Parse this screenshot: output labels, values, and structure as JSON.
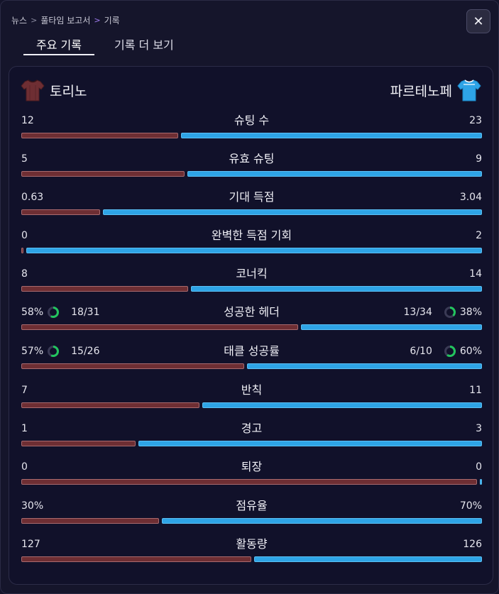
{
  "breadcrumb": {
    "items": [
      "뉴스",
      "풀타임 보고서",
      "기록"
    ]
  },
  "close_icon": "✕",
  "tabs": [
    {
      "label": "주요 기록"
    },
    {
      "label": "기록 더 보기"
    }
  ],
  "teams": {
    "home": {
      "name": "토리노",
      "color": "#6e2e33"
    },
    "away": {
      "name": "파르테노페",
      "color": "#2ea4e6"
    }
  },
  "stats": [
    {
      "label": "슈팅 수",
      "home": "12",
      "away": "23",
      "hv": 12,
      "av": 23
    },
    {
      "label": "유효 슈팅",
      "home": "5",
      "away": "9",
      "hv": 5,
      "av": 9
    },
    {
      "label": "기대 득점",
      "home": "0.63",
      "away": "3.04",
      "hv": 0.63,
      "av": 3.04
    },
    {
      "label": "완벽한 득점 기회",
      "home": "0",
      "away": "2",
      "hv": 0,
      "av": 2
    },
    {
      "label": "코너킥",
      "home": "8",
      "away": "14",
      "hv": 8,
      "av": 14
    },
    {
      "label": "성공한 헤더",
      "home": "18/31",
      "away": "13/34",
      "home_pct": "58%",
      "away_pct": "38%",
      "hv": 58,
      "av": 38
    },
    {
      "label": "태클 성공률",
      "home": "15/26",
      "away": "6/10",
      "home_pct": "57%",
      "away_pct": "60%",
      "hv": 57,
      "av": 60
    },
    {
      "label": "반칙",
      "home": "7",
      "away": "11",
      "hv": 7,
      "av": 11
    },
    {
      "label": "경고",
      "home": "1",
      "away": "3",
      "hv": 1,
      "av": 3
    },
    {
      "label": "퇴장",
      "home": "0",
      "away": "0",
      "hv": 0,
      "av": 0
    },
    {
      "label": "점유율",
      "home": "30%",
      "away": "70%",
      "hv": 30,
      "av": 70
    },
    {
      "label": "활동량",
      "home": "127",
      "away": "126",
      "hv": 127,
      "av": 126
    }
  ]
}
